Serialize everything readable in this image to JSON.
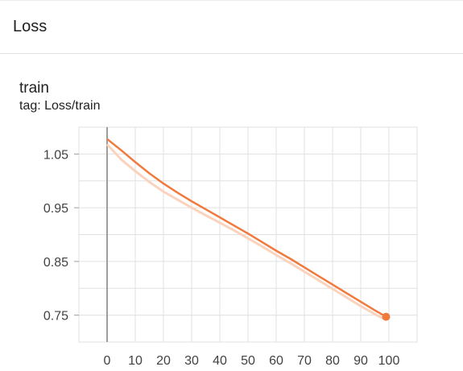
{
  "section": {
    "title": "Loss"
  },
  "card": {
    "title": "train",
    "tag": "tag: Loss/train"
  },
  "colors": {
    "series": "#f07a3e",
    "series_raw": "#fbd3bd",
    "grid": "#e0e0e0",
    "zero_line": "#9e9e9e"
  },
  "chart_data": {
    "type": "line",
    "title": "train",
    "xlabel": "",
    "ylabel": "",
    "xlim": [
      -10,
      110
    ],
    "ylim": [
      0.7,
      1.1
    ],
    "xticks": [
      0,
      10,
      20,
      30,
      40,
      50,
      60,
      70,
      80,
      90,
      100
    ],
    "yticks": [
      0.75,
      0.85,
      0.95,
      1.05
    ],
    "ytick_labels": [
      "0.75",
      "0.85",
      "0.95",
      "1.05"
    ],
    "grid": true,
    "series": [
      {
        "x": [
          0,
          5,
          10,
          15,
          20,
          25,
          30,
          35,
          40,
          45,
          50,
          55,
          60,
          65,
          70,
          75,
          80,
          85,
          90,
          95,
          99
        ],
        "y": [
          1.078,
          1.057,
          1.035,
          1.014,
          0.995,
          0.978,
          0.962,
          0.947,
          0.932,
          0.917,
          0.902,
          0.886,
          0.87,
          0.855,
          0.839,
          0.823,
          0.807,
          0.791,
          0.775,
          0.759,
          0.747
        ]
      },
      {
        "x": [
          0,
          5,
          10,
          15,
          20,
          25,
          30,
          35,
          40,
          45,
          50,
          55,
          60,
          65,
          70,
          75,
          80,
          85,
          90,
          95,
          99
        ],
        "y": [
          1.068,
          1.04,
          1.018,
          0.998,
          0.98,
          0.965,
          0.95,
          0.936,
          0.922,
          0.908,
          0.893,
          0.878,
          0.862,
          0.847,
          0.831,
          0.815,
          0.799,
          0.783,
          0.767,
          0.752,
          0.741
        ]
      }
    ]
  }
}
